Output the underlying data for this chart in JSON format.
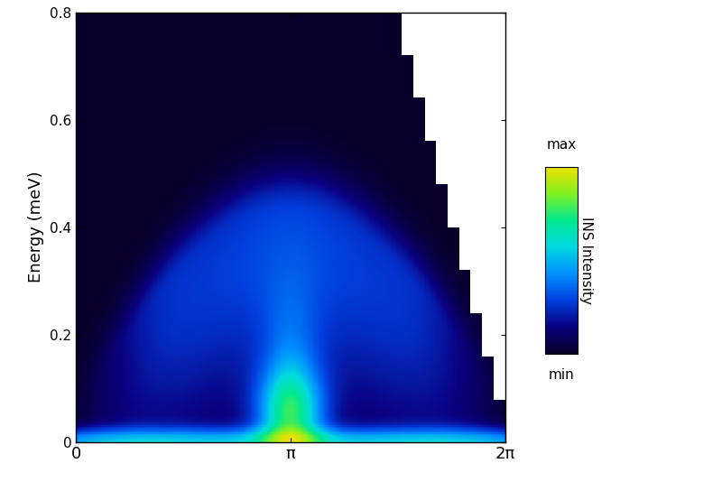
{
  "title": "",
  "xlabel": "",
  "ylabel": "Energy (meV)",
  "xlim": [
    0,
    6.2832
  ],
  "ylim": [
    0,
    0.8
  ],
  "xticks": [
    0,
    3.14159,
    6.2832
  ],
  "xticklabels": [
    "0",
    "π",
    "2π"
  ],
  "yticks": [
    0.0,
    0.2,
    0.4,
    0.6,
    0.8
  ],
  "yticklabels": [
    "0",
    "0.2",
    "0.4",
    "0.6",
    "0.8"
  ],
  "colorbar_label": "INS Intensity",
  "colorbar_top_label": "max",
  "colorbar_bot_label": "min",
  "figsize": [
    8.0,
    5.44
  ],
  "dpi": 100,
  "nx": 400,
  "ny": 300
}
